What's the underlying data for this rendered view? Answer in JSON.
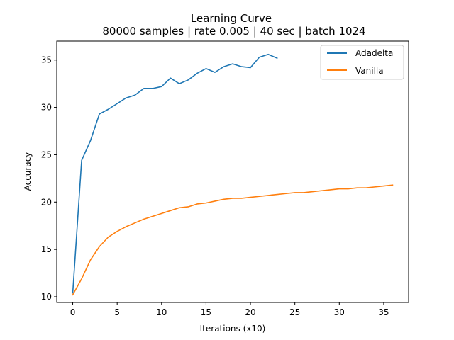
{
  "chart_data": {
    "type": "line",
    "title": "Learning Curve",
    "subtitle": "80000 samples | rate 0.005 | 40 sec | batch 1024",
    "xlabel": "Iterations (x10)",
    "ylabel": "Accuracy",
    "xlim": [
      -1.8,
      37.8
    ],
    "ylim": [
      9.4,
      37.0
    ],
    "xticks": [
      0,
      5,
      10,
      15,
      20,
      25,
      30,
      35
    ],
    "yticks": [
      10,
      15,
      20,
      25,
      30,
      35
    ],
    "grid": false,
    "legend": "top-right",
    "series": [
      {
        "name": "Adadelta",
        "color": "#1f77b4",
        "x": [
          0,
          1,
          2,
          3,
          4,
          5,
          6,
          7,
          8,
          9,
          10,
          11,
          12,
          13,
          14,
          15,
          16,
          17,
          18,
          19,
          20,
          21,
          22,
          23
        ],
        "values": [
          10.4,
          24.4,
          26.5,
          29.3,
          29.8,
          30.4,
          31.0,
          31.3,
          32.0,
          32.0,
          32.2,
          33.1,
          32.5,
          32.9,
          33.6,
          34.1,
          33.7,
          34.3,
          34.6,
          34.3,
          34.2,
          35.3,
          35.6,
          35.2
        ]
      },
      {
        "name": "Vanilla",
        "color": "#ff7f0e",
        "x": [
          0,
          1,
          2,
          3,
          4,
          5,
          6,
          7,
          8,
          9,
          10,
          11,
          12,
          13,
          14,
          15,
          16,
          17,
          18,
          19,
          20,
          21,
          22,
          23,
          24,
          25,
          26,
          27,
          28,
          29,
          30,
          31,
          32,
          33,
          34,
          35,
          36
        ],
        "values": [
          10.2,
          11.9,
          13.9,
          15.3,
          16.3,
          16.9,
          17.4,
          17.8,
          18.2,
          18.5,
          18.8,
          19.1,
          19.4,
          19.5,
          19.8,
          19.9,
          20.1,
          20.3,
          20.4,
          20.4,
          20.5,
          20.6,
          20.7,
          20.8,
          20.9,
          21.0,
          21.0,
          21.1,
          21.2,
          21.3,
          21.4,
          21.4,
          21.5,
          21.5,
          21.6,
          21.7,
          21.8
        ]
      }
    ]
  }
}
